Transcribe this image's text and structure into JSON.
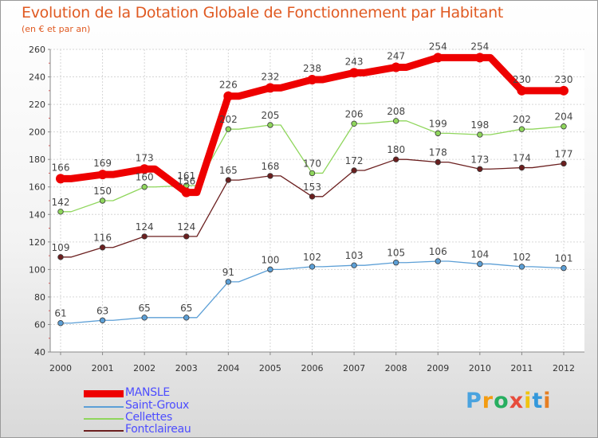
{
  "chart_data": {
    "type": "line",
    "title": "Evolution de la Dotation Globale de Fonctionnement par Habitant",
    "subtitle": "(en € et par an)",
    "xlabel": "",
    "ylabel": "",
    "ylim": [
      40,
      260
    ],
    "yticks": [
      "40",
      "60",
      "80",
      "100",
      "120",
      "140",
      "160",
      "180",
      "200",
      "220",
      "240",
      "260"
    ],
    "categories": [
      "2000",
      "2001",
      "2002",
      "2003",
      "2004",
      "2005",
      "2006",
      "2007",
      "2008",
      "2009",
      "2010",
      "2011",
      "2012"
    ],
    "grid": true,
    "legend_position": "bottom-left",
    "series": [
      {
        "name": "Fontclaireau",
        "color": "#6b1f1f",
        "values": [
          109,
          116,
          124,
          124,
          165,
          168,
          153,
          172,
          180,
          178,
          173,
          174,
          177
        ]
      },
      {
        "name": "Saint-Groux",
        "color": "#5c9fd6",
        "values": [
          61,
          63,
          65,
          65,
          91,
          100,
          102,
          103,
          105,
          106,
          104,
          102,
          101
        ]
      },
      {
        "name": "Cellettes",
        "color": "#8fd65c",
        "values": [
          142,
          150,
          160,
          161,
          202,
          205,
          170,
          206,
          208,
          199,
          198,
          202,
          204
        ]
      },
      {
        "name": "MANSLE",
        "color": "#ee0000",
        "values": [
          166,
          169,
          173,
          156,
          226,
          232,
          238,
          243,
          247,
          254,
          254,
          230,
          230
        ]
      }
    ]
  },
  "legend": {
    "items": [
      {
        "label": "MANSLE",
        "color": "#ee0000",
        "text_color": "#4d4dff"
      },
      {
        "label": "Saint-Groux",
        "color": "#5c9fd6",
        "text_color": "#4d4dff"
      },
      {
        "label": "Cellettes",
        "color": "#8fd65c",
        "text_color": "#4d4dff"
      },
      {
        "label": "Fontclaireau",
        "color": "#6b1f1f",
        "text_color": "#4d4dff"
      }
    ]
  },
  "logo": {
    "letters": [
      "P",
      "r",
      "o",
      "x",
      "i",
      "t",
      "i"
    ],
    "colors": [
      "#4aa3df",
      "#f39c12",
      "#27ae60",
      "#e74c3c",
      "#f1c40f",
      "#3498db",
      "#e67e22"
    ]
  }
}
